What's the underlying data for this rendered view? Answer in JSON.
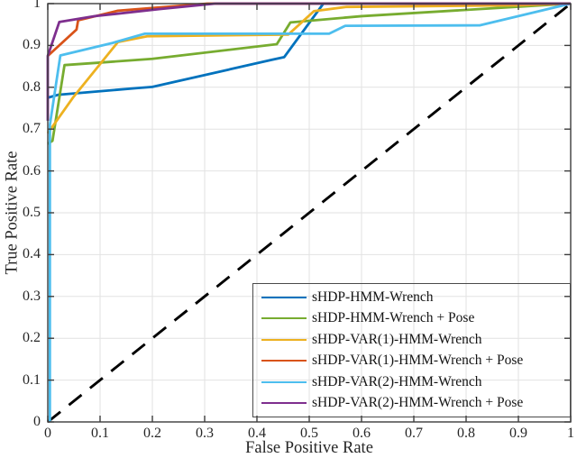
{
  "chart_data": {
    "type": "line",
    "title": "",
    "xlabel": "False Positive Rate",
    "ylabel": "True Positive Rate",
    "xlim": [
      0,
      1
    ],
    "ylim": [
      0,
      1
    ],
    "grid": true,
    "legend_position": "southeast",
    "background": "#ffffff",
    "axis_color": "#3c3c3c",
    "grid_color": "#e2e2e2",
    "text_color": "#262626",
    "line_width": 2.8,
    "x_ticks": [
      {
        "value": 0,
        "label": "0"
      },
      {
        "value": 0.1,
        "label": "0.1"
      },
      {
        "value": 0.2,
        "label": "0.2"
      },
      {
        "value": 0.3,
        "label": "0.3"
      },
      {
        "value": 0.4,
        "label": "0.4"
      },
      {
        "value": 0.5,
        "label": "0.5"
      },
      {
        "value": 0.6,
        "label": "0.6"
      },
      {
        "value": 0.7,
        "label": "0.7"
      },
      {
        "value": 0.8,
        "label": "0.8"
      },
      {
        "value": 0.9,
        "label": "0.9"
      },
      {
        "value": 1,
        "label": "1"
      }
    ],
    "y_ticks": [
      {
        "value": 0,
        "label": "0"
      },
      {
        "value": 0.1,
        "label": "0.1"
      },
      {
        "value": 0.2,
        "label": "0.2"
      },
      {
        "value": 0.3,
        "label": "0.3"
      },
      {
        "value": 0.4,
        "label": "0.4"
      },
      {
        "value": 0.5,
        "label": "0.5"
      },
      {
        "value": 0.6,
        "label": "0.6"
      },
      {
        "value": 0.7,
        "label": "0.7"
      },
      {
        "value": 0.8,
        "label": "0.8"
      },
      {
        "value": 0.9,
        "label": "0.9"
      },
      {
        "value": 1,
        "label": "1"
      }
    ],
    "reference_line": {
      "name": "chance-diagonal",
      "color": "#000000",
      "dash": [
        18,
        12
      ],
      "points": [
        [
          0,
          0
        ],
        [
          1,
          1
        ]
      ]
    },
    "series": [
      {
        "name": "sHDP-HMM-Wrench",
        "color": "#0072BD",
        "points": [
          [
            0,
            0.775
          ],
          [
            0.02,
            0.782
          ],
          [
            0.17,
            0.798
          ],
          [
            0.2,
            0.801
          ],
          [
            0.43,
            0.866
          ],
          [
            0.452,
            0.872
          ],
          [
            0.527,
            1
          ],
          [
            1,
            1
          ]
        ]
      },
      {
        "name": "sHDP-HMM-Wrench + Pose",
        "color": "#77AC30",
        "points": [
          [
            0,
            0.665
          ],
          [
            0.009,
            0.672
          ],
          [
            0.032,
            0.853
          ],
          [
            0.1,
            0.859
          ],
          [
            0.2,
            0.868
          ],
          [
            0.438,
            0.903
          ],
          [
            0.464,
            0.955
          ],
          [
            0.6,
            0.97
          ],
          [
            1,
            1
          ]
        ]
      },
      {
        "name": "sHDP-VAR(1)-HMM-Wrench",
        "color": "#EDB120",
        "points": [
          [
            0,
            0.69
          ],
          [
            0.048,
            0.775
          ],
          [
            0.134,
            0.908
          ],
          [
            0.19,
            0.922
          ],
          [
            0.46,
            0.926
          ],
          [
            0.509,
            0.982
          ],
          [
            0.57,
            0.992
          ],
          [
            0.9,
            0.996
          ],
          [
            1,
            1
          ]
        ]
      },
      {
        "name": "sHDP-VAR(1)-HMM-Wrench + Pose",
        "color": "#D95319",
        "points": [
          [
            0,
            0.875
          ],
          [
            0.055,
            0.938
          ],
          [
            0.058,
            0.96
          ],
          [
            0.134,
            0.983
          ],
          [
            0.305,
            1
          ],
          [
            1,
            1
          ]
        ]
      },
      {
        "name": "sHDP-VAR(2)-HMM-Wrench",
        "color": "#4DBEEE",
        "points": [
          [
            0.004,
            0
          ],
          [
            0.004,
            0.71
          ],
          [
            0.024,
            0.876
          ],
          [
            0.124,
            0.906
          ],
          [
            0.185,
            0.928
          ],
          [
            0.538,
            0.928
          ],
          [
            0.569,
            0.947
          ],
          [
            0.826,
            0.948
          ],
          [
            1,
            1
          ]
        ]
      },
      {
        "name": "sHDP-VAR(2)-HMM-Wrench + Pose",
        "color": "#7E2F8E",
        "points": [
          [
            0,
            0.72
          ],
          [
            0,
            0.875
          ],
          [
            0.022,
            0.956
          ],
          [
            0.09,
            0.97
          ],
          [
            0.215,
            0.987
          ],
          [
            0.32,
            1
          ],
          [
            1,
            1
          ]
        ]
      }
    ]
  }
}
